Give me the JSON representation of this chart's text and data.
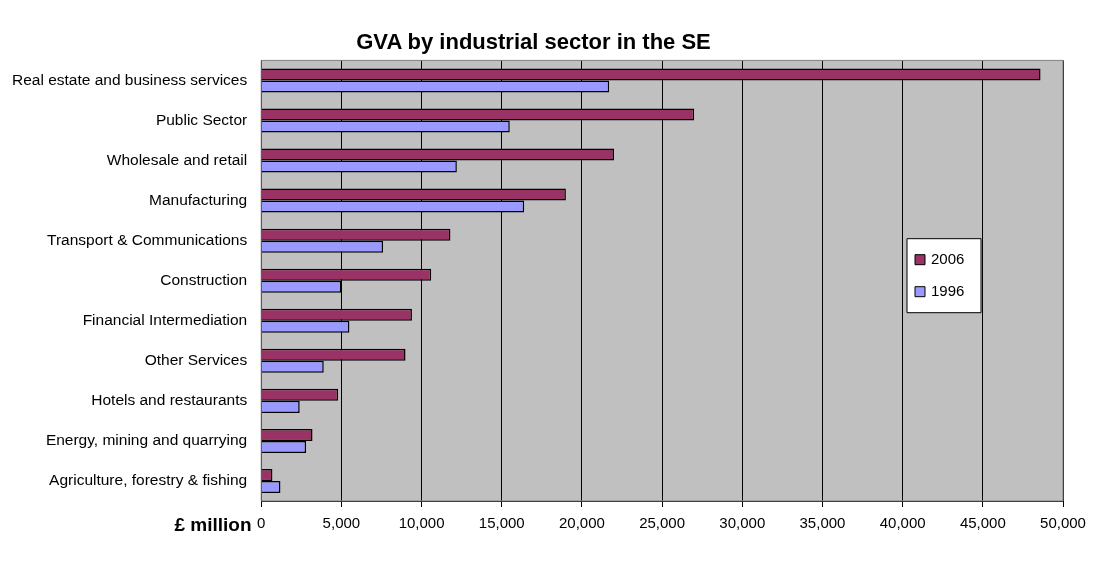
{
  "chart_data": {
    "type": "bar",
    "orientation": "horizontal",
    "title": "GVA by industrial sector in the SE",
    "xlabel": "£ million",
    "categories": [
      "Real estate and business services",
      "Public Sector",
      "Wholesale and retail",
      "Manufacturing",
      "Transport & Communications",
      "Construction",
      "Financial Intermediation",
      "Other Services",
      "Hotels and restaurants",
      "Energy, mining and quarrying",
      "Agriculture, forestry & fishing"
    ],
    "series": [
      {
        "name": "2006",
        "color": "#993366",
        "values": [
          48600,
          27000,
          22000,
          19000,
          11800,
          10600,
          9400,
          9000,
          4800,
          3200,
          700
        ]
      },
      {
        "name": "1996",
        "color": "#9999ff",
        "values": [
          21700,
          15500,
          12200,
          16400,
          7600,
          5000,
          5500,
          3900,
          2400,
          2800,
          1200
        ]
      }
    ],
    "xlim": [
      0,
      50000
    ],
    "xticks": [
      {
        "value": 0,
        "label": "0"
      },
      {
        "value": 5000,
        "label": "5,000"
      },
      {
        "value": 10000,
        "label": "10,000"
      },
      {
        "value": 15000,
        "label": "15,000"
      },
      {
        "value": 20000,
        "label": "20,000"
      },
      {
        "value": 25000,
        "label": "25,000"
      },
      {
        "value": 30000,
        "label": "30,000"
      },
      {
        "value": 35000,
        "label": "35,000"
      },
      {
        "value": 40000,
        "label": "40,000"
      },
      {
        "value": 45000,
        "label": "45,000"
      },
      {
        "value": 50000,
        "label": "50,000"
      }
    ],
    "grid": "x",
    "legend": "right"
  }
}
